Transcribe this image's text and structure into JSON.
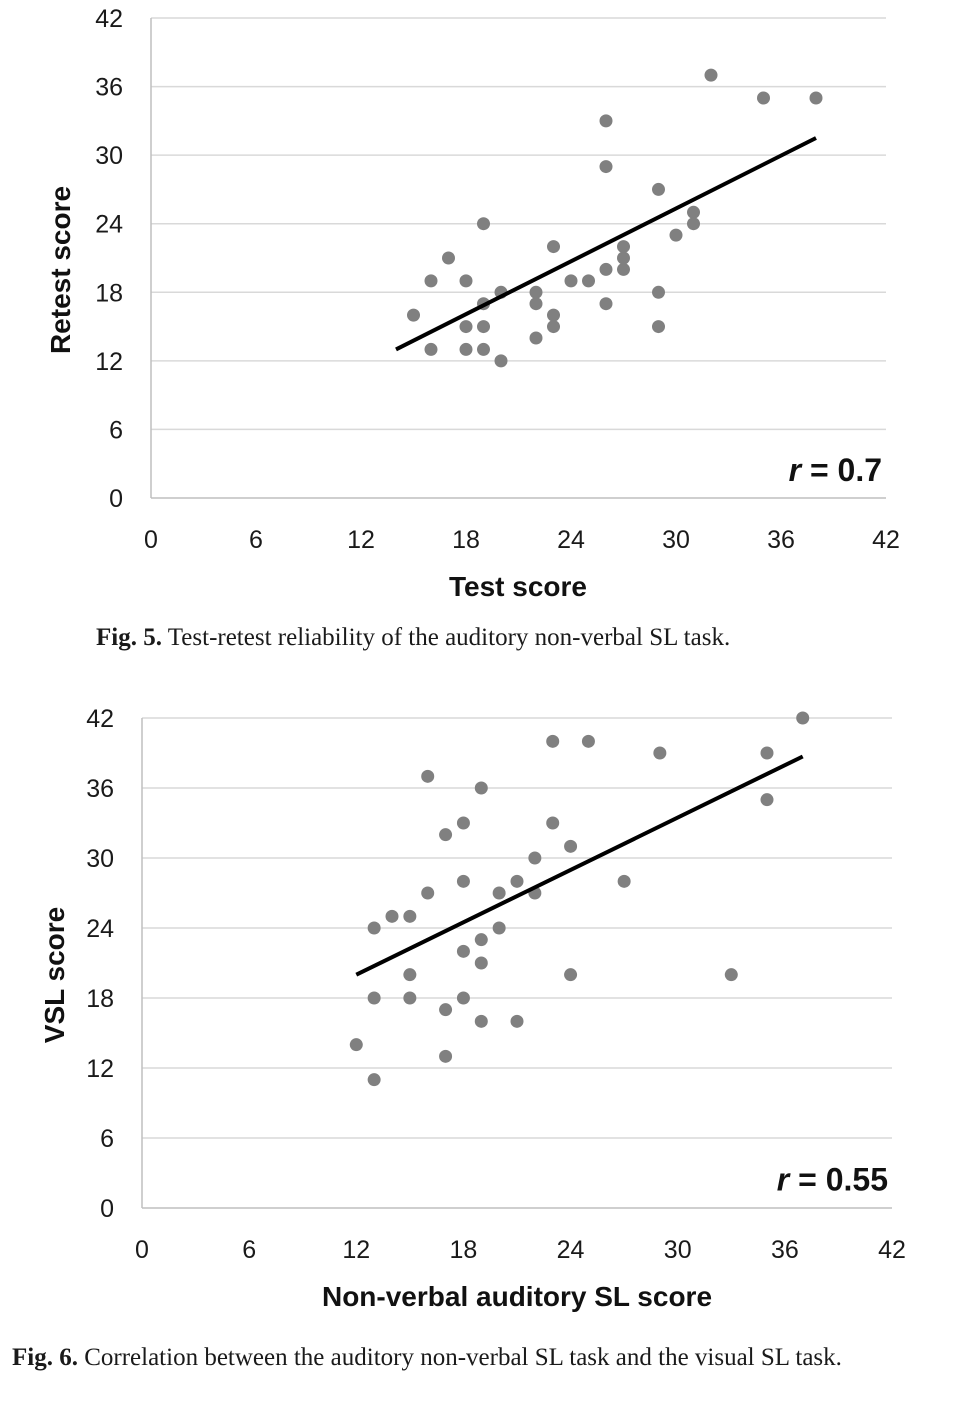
{
  "chart_data": [
    {
      "type": "scatter",
      "xlabel": "Test score",
      "ylabel": "Retest score",
      "xlim": [
        0,
        42
      ],
      "ylim": [
        0,
        42
      ],
      "xticks": [
        0,
        6,
        12,
        18,
        24,
        30,
        36,
        42
      ],
      "yticks": [
        0,
        6,
        12,
        18,
        24,
        30,
        36,
        42
      ],
      "grid": "horizontal",
      "annotation": {
        "italic": "r",
        "rest": " = 0.7"
      },
      "trendline": {
        "x": [
          14,
          38
        ],
        "y": [
          13,
          31.5
        ]
      },
      "points": [
        [
          15,
          16
        ],
        [
          16,
          19
        ],
        [
          16,
          13
        ],
        [
          17,
          21
        ],
        [
          18,
          19
        ],
        [
          18,
          15
        ],
        [
          18,
          13
        ],
        [
          19,
          24
        ],
        [
          19,
          17
        ],
        [
          19,
          15
        ],
        [
          19,
          13
        ],
        [
          20,
          18
        ],
        [
          20,
          12
        ],
        [
          22,
          18
        ],
        [
          22,
          17
        ],
        [
          22,
          14
        ],
        [
          23,
          22
        ],
        [
          23,
          16
        ],
        [
          23,
          15
        ],
        [
          24,
          19
        ],
        [
          25,
          19
        ],
        [
          26,
          33
        ],
        [
          26,
          29
        ],
        [
          26,
          20
        ],
        [
          26,
          17
        ],
        [
          27,
          22
        ],
        [
          27,
          21
        ],
        [
          27,
          20
        ],
        [
          29,
          27
        ],
        [
          29,
          18
        ],
        [
          29,
          15
        ],
        [
          30,
          23
        ],
        [
          31,
          25
        ],
        [
          31,
          24
        ],
        [
          32,
          37
        ],
        [
          35,
          35
        ],
        [
          38,
          35
        ]
      ]
    },
    {
      "type": "scatter",
      "xlabel": "Non-verbal auditory SL score",
      "ylabel": "VSL score",
      "xlim": [
        0,
        42
      ],
      "ylim": [
        0,
        42
      ],
      "xticks": [
        0,
        6,
        12,
        18,
        24,
        30,
        36,
        42
      ],
      "yticks": [
        0,
        6,
        12,
        18,
        24,
        30,
        36,
        42
      ],
      "grid": "horizontal",
      "annotation": {
        "italic": "r",
        "rest": " = 0.55"
      },
      "trendline": {
        "x": [
          12,
          37
        ],
        "y": [
          20,
          38.7
        ]
      },
      "points": [
        [
          12,
          14
        ],
        [
          13,
          24
        ],
        [
          13,
          18
        ],
        [
          13,
          11
        ],
        [
          14,
          25
        ],
        [
          15,
          25
        ],
        [
          15,
          20
        ],
        [
          15,
          18
        ],
        [
          16,
          37
        ],
        [
          16,
          27
        ],
        [
          17,
          32
        ],
        [
          17,
          17
        ],
        [
          17,
          13
        ],
        [
          18,
          33
        ],
        [
          18,
          28
        ],
        [
          18,
          22
        ],
        [
          18,
          18
        ],
        [
          19,
          36
        ],
        [
          19,
          23
        ],
        [
          19,
          21
        ],
        [
          19,
          16
        ],
        [
          20,
          27
        ],
        [
          20,
          24
        ],
        [
          21,
          28
        ],
        [
          21,
          16
        ],
        [
          22,
          30
        ],
        [
          22,
          27
        ],
        [
          23,
          40
        ],
        [
          23,
          33
        ],
        [
          24,
          31
        ],
        [
          24,
          20
        ],
        [
          25,
          40
        ],
        [
          27,
          28
        ],
        [
          29,
          39
        ],
        [
          33,
          20
        ],
        [
          35,
          39
        ],
        [
          35,
          35
        ],
        [
          37,
          42
        ]
      ]
    }
  ],
  "captions": [
    {
      "label": "Fig. 5.",
      "text": " Test-retest reliability of the auditory non-verbal SL task."
    },
    {
      "label": "Fig. 6.",
      "text": " Correlation between the auditory non-verbal SL task and the visual SL task."
    }
  ]
}
